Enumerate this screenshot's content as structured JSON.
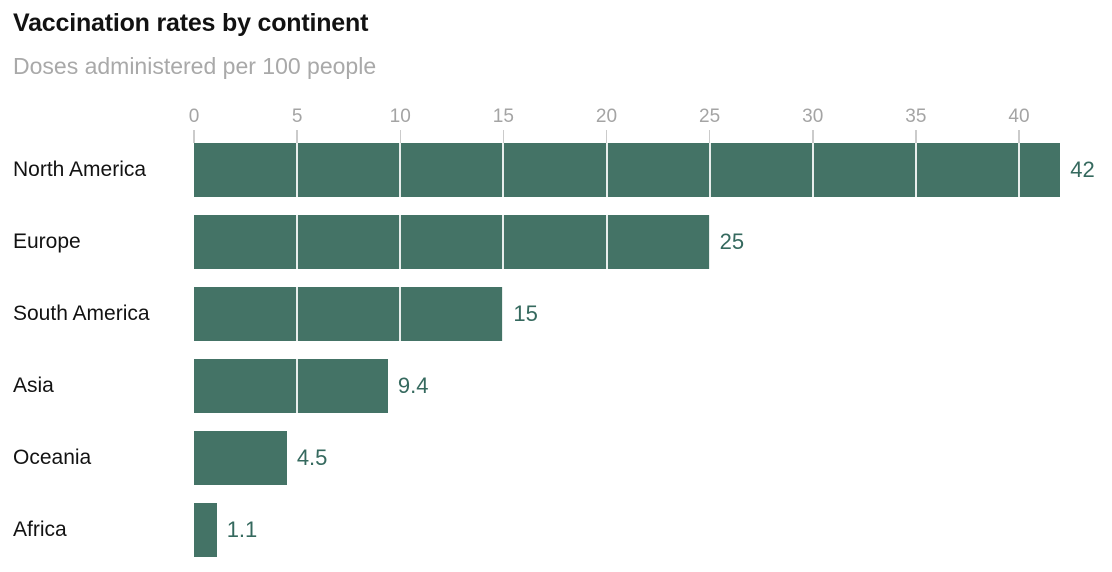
{
  "chart_data": {
    "type": "bar",
    "orientation": "horizontal",
    "title": "Vaccination rates by continent",
    "subtitle": "Doses administered per 100 people",
    "categories": [
      "North America",
      "Europe",
      "South America",
      "Asia",
      "Oceania",
      "Africa"
    ],
    "values": [
      42,
      25,
      15,
      9.4,
      4.5,
      1.1
    ],
    "value_labels": [
      "42",
      "25",
      "15",
      "9.4",
      "4.5",
      "1.1"
    ],
    "xlabel": "",
    "ylabel": "",
    "xlim": [
      0,
      42
    ],
    "x_ticks": [
      0,
      5,
      10,
      15,
      20,
      25,
      30,
      35,
      40
    ],
    "grid": "vertical white gridlines over bars at each tick",
    "legend": "none",
    "colors": {
      "bar": "#447366",
      "value_label": "#35695e",
      "axis_label": "#a4a4a4",
      "tick_mark": "#cbcbcb",
      "gridline": "#ffffff",
      "title": "#121212",
      "subtitle": "#a9a9a9",
      "category_label": "#121212",
      "background": "#ffffff"
    }
  }
}
